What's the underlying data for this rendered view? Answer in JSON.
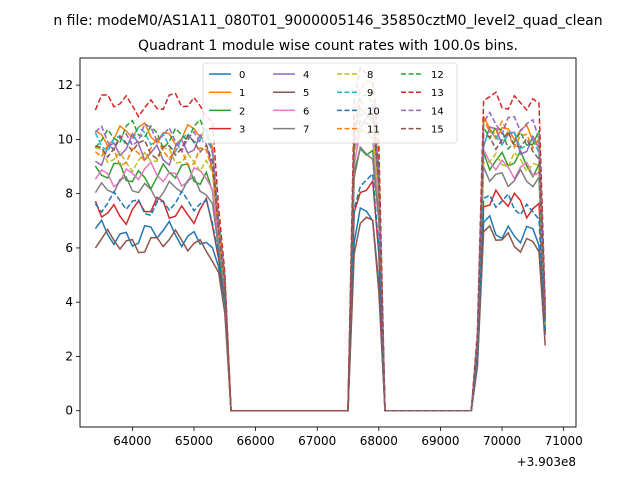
{
  "figure": {
    "suptitle": "n file: modeM0/AS1A11_080T01_9000005146_35850cztM0_level2_quad_clean",
    "offset_label": "+3.903e8"
  },
  "chart_data": {
    "type": "line",
    "title": "Quadrant 1 module wise count rates with 100.0s bins.",
    "xlabel": "",
    "ylabel": "",
    "x_offset": 390300000,
    "xlim": [
      63150,
      71200
    ],
    "ylim": [
      -0.6,
      13.0
    ],
    "x_ticks": [
      64000,
      65000,
      66000,
      67000,
      68000,
      69000,
      70000,
      71000
    ],
    "x_tick_labels": [
      "64000",
      "65000",
      "66000",
      "67000",
      "68000",
      "69000",
      "70000",
      "71000"
    ],
    "y_ticks": [
      0,
      2,
      4,
      6,
      8,
      10,
      12
    ],
    "y_tick_labels": [
      "0",
      "2",
      "4",
      "6",
      "8",
      "10",
      "12"
    ],
    "grid": false,
    "legend_placement": "top-center",
    "legend_columns": 4,
    "segments": [
      [
        63400,
        65500,
        0
      ],
      [
        67500,
        68000,
        1
      ],
      [
        69600,
        70600,
        2
      ]
    ],
    "gap_bins": [
      65600,
      66100,
      66600,
      67100,
      68100,
      68600,
      69100,
      69500
    ],
    "series": [
      {
        "name": "0",
        "color": "#1f77b4",
        "dash": "solid",
        "base": [
          6.5,
          7.2,
          6.8
        ],
        "amp": 0.35,
        "end": [
          5.3,
          2.8
        ]
      },
      {
        "name": "1",
        "color": "#ff7f0e",
        "dash": "solid",
        "base": [
          10.2,
          11.0,
          10.5
        ],
        "amp": 0.3,
        "end": [
          6.8,
          3.2
        ]
      },
      {
        "name": "2",
        "color": "#2ca02c",
        "dash": "solid",
        "base": [
          8.7,
          9.7,
          9.4
        ],
        "amp": 0.35,
        "end": [
          5.8,
          3.5
        ]
      },
      {
        "name": "3",
        "color": "#d62728",
        "dash": "solid",
        "base": [
          7.4,
          8.3,
          7.9
        ],
        "amp": 0.35,
        "end": [
          5.6,
          2.9
        ]
      },
      {
        "name": "4",
        "color": "#9467bd",
        "dash": "solid",
        "base": [
          9.6,
          10.7,
          10.2
        ],
        "amp": 0.4,
        "end": [
          6.5,
          3.4
        ]
      },
      {
        "name": "5",
        "color": "#8c564b",
        "dash": "solid",
        "base": [
          6.2,
          6.9,
          6.5
        ],
        "amp": 0.3,
        "end": [
          5.1,
          2.4
        ]
      },
      {
        "name": "6",
        "color": "#e377c2",
        "dash": "solid",
        "base": [
          8.7,
          10.1,
          9.2
        ],
        "amp": 0.3,
        "end": [
          6.2,
          3.2
        ]
      },
      {
        "name": "7",
        "color": "#7f7f7f",
        "dash": "solid",
        "base": [
          8.2,
          9.5,
          8.8
        ],
        "amp": 0.3,
        "end": [
          6.0,
          3.0
        ]
      },
      {
        "name": "8",
        "color": "#bcbd22",
        "dash": "dashed",
        "base": [
          9.3,
          10.4,
          9.4
        ],
        "amp": 0.3,
        "end": [
          6.6,
          3.1
        ]
      },
      {
        "name": "9",
        "color": "#17becf",
        "dash": "dashed",
        "base": [
          10.0,
          11.1,
          10.2
        ],
        "amp": 0.3,
        "end": [
          6.9,
          3.3
        ]
      },
      {
        "name": "10",
        "color": "#1f77b4",
        "dash": "dashed",
        "base": [
          7.6,
          8.5,
          7.8
        ],
        "amp": 0.3,
        "end": [
          5.7,
          2.9
        ]
      },
      {
        "name": "11",
        "color": "#ff7f0e",
        "dash": "dashed",
        "base": [
          9.5,
          11.9,
          10.4
        ],
        "amp": 0.35,
        "end": [
          6.7,
          3.5
        ]
      },
      {
        "name": "12",
        "color": "#2ca02c",
        "dash": "dashed",
        "base": [
          10.2,
          11.4,
          10.3
        ],
        "amp": 0.35,
        "end": [
          7.0,
          3.8
        ]
      },
      {
        "name": "13",
        "color": "#d62728",
        "dash": "dashed",
        "base": [
          11.3,
          12.4,
          11.6
        ],
        "amp": 0.3,
        "end": [
          7.5,
          3.9
        ]
      },
      {
        "name": "14",
        "color": "#9467bd",
        "dash": "dashed",
        "base": [
          10.1,
          11.3,
          10.8
        ],
        "amp": 0.35,
        "end": [
          6.9,
          3.6
        ]
      },
      {
        "name": "15",
        "color": "#8c564b",
        "dash": "dashed",
        "base": [
          9.7,
          10.8,
          10.1
        ],
        "amp": 0.3,
        "end": [
          6.6,
          3.4
        ]
      }
    ]
  }
}
